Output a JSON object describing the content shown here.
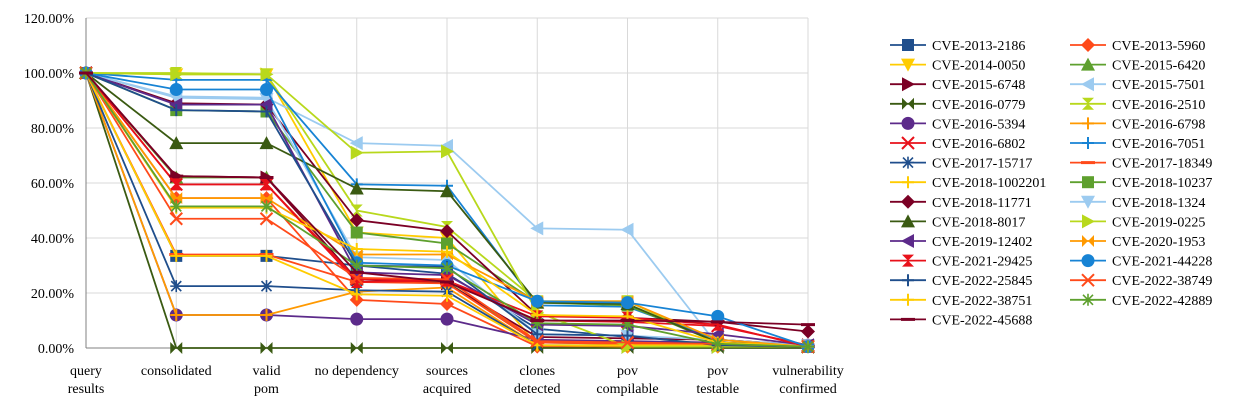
{
  "chart_data": {
    "type": "line",
    "title": "",
    "xlabel": "",
    "ylabel": "",
    "ylim": [
      0,
      120
    ],
    "y_tick_suffix": "%",
    "y_ticks": [
      "0.00%",
      "20.00%",
      "40.00%",
      "60.00%",
      "80.00%",
      "100.00%",
      "120.00%"
    ],
    "categories": [
      [
        "query",
        "results"
      ],
      [
        "consolidated"
      ],
      [
        "valid",
        "pom"
      ],
      [
        "no dependency"
      ],
      [
        "sources",
        "acquired"
      ],
      [
        "clones",
        "detected"
      ],
      [
        "pov",
        "compilable"
      ],
      [
        "pov",
        "testable"
      ],
      [
        "vulnerability",
        "confirmed"
      ]
    ],
    "series": [
      {
        "name": "CVE-2013-2186",
        "color": "#1f4e8c",
        "marker": "square",
        "values": [
          100,
          33.5,
          33.5,
          30,
          27,
          7,
          4,
          3,
          1
        ]
      },
      {
        "name": "CVE-2013-5960",
        "color": "#ff4a1a",
        "marker": "diamond",
        "values": [
          100,
          54.5,
          54.5,
          17.5,
          16,
          0.5,
          0.5,
          0.5,
          0.5
        ]
      },
      {
        "name": "CVE-2014-0050",
        "color": "#ffcc00",
        "marker": "tri-down",
        "values": [
          100,
          99.5,
          99.5,
          42,
          40,
          1,
          0.5,
          0.5,
          0.5
        ]
      },
      {
        "name": "CVE-2015-6420",
        "color": "#5ea02e",
        "marker": "tri-up",
        "values": [
          100,
          62,
          62,
          25,
          24,
          2,
          1.5,
          1,
          0.5
        ]
      },
      {
        "name": "CVE-2015-6748",
        "color": "#7b0025",
        "marker": "tri-right",
        "values": [
          100,
          62.5,
          62,
          25,
          23.5,
          4,
          3.5,
          3,
          1
        ]
      },
      {
        "name": "CVE-2015-7501",
        "color": "#9ccbf0",
        "marker": "tri-left",
        "values": [
          100,
          91.5,
          91,
          74.5,
          73.5,
          43.5,
          43,
          1,
          0.5
        ]
      },
      {
        "name": "CVE-2016-0779",
        "color": "#3a5a12",
        "marker": "bowtie",
        "values": [
          100,
          0,
          0,
          0,
          0,
          0,
          0,
          0,
          0
        ]
      },
      {
        "name": "CVE-2016-2510",
        "color": "#b8d81c",
        "marker": "hourglass",
        "values": [
          100,
          100,
          99.5,
          50,
          44,
          17,
          17,
          2,
          1
        ]
      },
      {
        "name": "CVE-2016-5394",
        "color": "#5c2a8a",
        "marker": "circle",
        "values": [
          100,
          12,
          12,
          10.5,
          10.5,
          3,
          2.5,
          2,
          1
        ]
      },
      {
        "name": "CVE-2016-6798",
        "color": "#ff9900",
        "marker": "plus",
        "values": [
          100,
          12,
          12,
          20.5,
          22,
          1,
          0.5,
          0.5,
          0.5
        ]
      },
      {
        "name": "CVE-2016-6802",
        "color": "#e8111a",
        "marker": "x",
        "values": [
          100,
          59.5,
          59.5,
          25,
          24.5,
          10,
          9.5,
          8,
          1
        ]
      },
      {
        "name": "CVE-2016-7051",
        "color": "#1783d4",
        "marker": "plus",
        "values": [
          100,
          97.5,
          97.5,
          59.5,
          59,
          15.5,
          15,
          3,
          0.5
        ]
      },
      {
        "name": "CVE-2017-15717",
        "color": "#1f4e8c",
        "marker": "star",
        "values": [
          100,
          22.5,
          22.5,
          21,
          20.5,
          1,
          1,
          1,
          0.5
        ]
      },
      {
        "name": "CVE-2017-18349",
        "color": "#ff4a1a",
        "marker": "dash",
        "values": [
          100,
          34,
          34,
          24,
          23.5,
          2,
          1.5,
          1,
          0.5
        ]
      },
      {
        "name": "CVE-2018-1002201",
        "color": "#ffcc00",
        "marker": "plus",
        "values": [
          100,
          33.5,
          33.5,
          19.5,
          19,
          1,
          1,
          1,
          0.5
        ]
      },
      {
        "name": "CVE-2018-10237",
        "color": "#5ea02e",
        "marker": "square",
        "values": [
          100,
          86.5,
          86,
          42,
          38,
          16.5,
          15.5,
          2,
          0.5
        ]
      },
      {
        "name": "CVE-2018-11771",
        "color": "#7b0025",
        "marker": "diamond",
        "values": [
          100,
          89,
          88.5,
          46.5,
          42.5,
          12,
          11,
          9.5,
          6
        ]
      },
      {
        "name": "CVE-2018-1324",
        "color": "#9ccbf0",
        "marker": "tri-down",
        "values": [
          100,
          91,
          90.5,
          33,
          32,
          5,
          4.5,
          3,
          1
        ]
      },
      {
        "name": "CVE-2018-8017",
        "color": "#3a5a12",
        "marker": "tri-up",
        "values": [
          100,
          74.5,
          74.5,
          58,
          57,
          16.5,
          16,
          2,
          0.5
        ]
      },
      {
        "name": "CVE-2019-0225",
        "color": "#b8d81c",
        "marker": "tri-right",
        "values": [
          100,
          99.5,
          99.5,
          71,
          71.5,
          13,
          0.5,
          0.5,
          0.5
        ]
      },
      {
        "name": "CVE-2019-12402",
        "color": "#5c2a8a",
        "marker": "tri-left",
        "values": [
          100,
          88.5,
          88.5,
          27.5,
          26.5,
          8.5,
          8,
          5,
          1
        ]
      },
      {
        "name": "CVE-2020-1953",
        "color": "#ff9900",
        "marker": "bowtie",
        "values": [
          100,
          54.5,
          54.5,
          34,
          34,
          17,
          17,
          3,
          0.5
        ]
      },
      {
        "name": "CVE-2021-29425",
        "color": "#e8111a",
        "marker": "hourglass",
        "values": [
          100,
          59.5,
          59.5,
          24,
          24.5,
          11.5,
          11,
          8.5,
          0.5
        ]
      },
      {
        "name": "CVE-2021-44228",
        "color": "#1783d4",
        "marker": "circle",
        "values": [
          100,
          94,
          94,
          31,
          30,
          17,
          16.5,
          11.5,
          0.5
        ]
      },
      {
        "name": "CVE-2022-25845",
        "color": "#1f4e8c",
        "marker": "plus",
        "values": [
          100,
          86.5,
          86,
          30,
          29.5,
          5,
          4.5,
          1,
          0.5
        ]
      },
      {
        "name": "CVE-2022-38749",
        "color": "#ff4a1a",
        "marker": "x",
        "values": [
          100,
          47,
          47,
          25.5,
          25,
          2.5,
          2,
          1.5,
          0.5
        ]
      },
      {
        "name": "CVE-2022-38751",
        "color": "#ffcc00",
        "marker": "plus",
        "values": [
          100,
          51,
          51,
          36,
          35,
          12,
          11.5,
          2,
          0.5
        ]
      },
      {
        "name": "CVE-2022-42889",
        "color": "#5ea02e",
        "marker": "star",
        "values": [
          100,
          51.5,
          51.5,
          30,
          29,
          9,
          8.5,
          1.5,
          0.5
        ]
      },
      {
        "name": "CVE-2022-45688",
        "color": "#7b0025",
        "marker": "dash",
        "values": [
          100,
          62.5,
          62,
          27.5,
          24,
          10,
          10,
          9.5,
          8.5
        ]
      }
    ]
  }
}
